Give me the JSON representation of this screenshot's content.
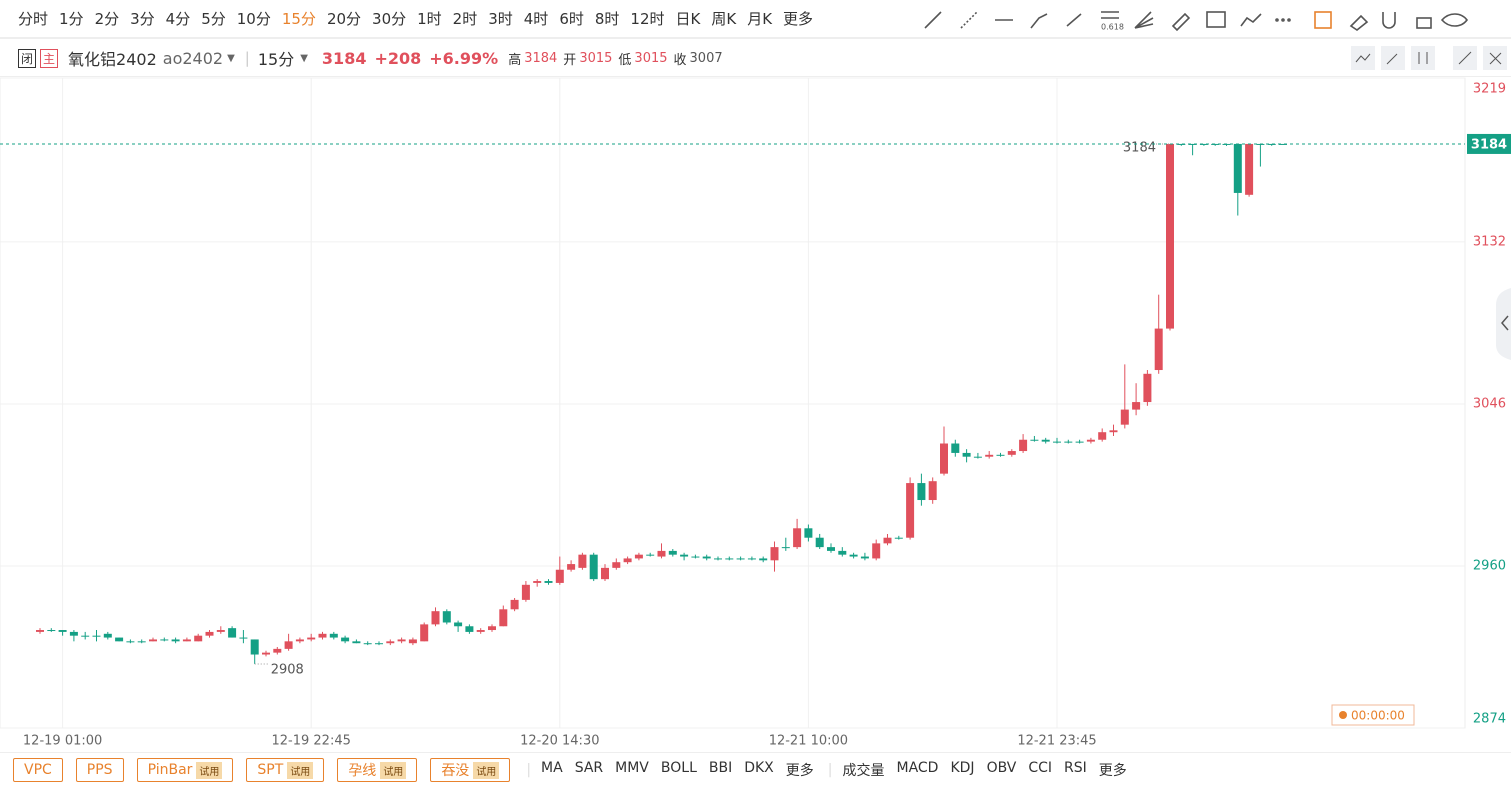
{
  "toolbar": {
    "periods": [
      "分时",
      "1分",
      "2分",
      "3分",
      "4分",
      "5分",
      "10分",
      "15分",
      "20分",
      "30分",
      "1时",
      "2时",
      "3时",
      "4时",
      "6时",
      "8时",
      "12时",
      "日K",
      "周K",
      "月K",
      "更多"
    ],
    "active": "15分",
    "fib_label": "0.618"
  },
  "header": {
    "badge_close": "闭",
    "badge_main": "主",
    "name": "氧化铝2402",
    "code": "ao2402",
    "period": "15分",
    "price": "3184",
    "change": "+208",
    "change_pct": "+6.99%",
    "high_label": "高",
    "high": "3184",
    "open_label": "开",
    "open": "3015",
    "low_label": "低",
    "low": "3015",
    "close_label": "收"
  },
  "chart_data": {
    "type": "candlestick",
    "prev_close": 3007,
    "last": 3184,
    "max_label": 3184,
    "min_label": 2908,
    "countdown": "00:00:00",
    "up_color": "#e0505c",
    "down_color": "#14a085",
    "ylim": [
      2874,
      3219
    ],
    "yticks": [
      2874,
      2960,
      3046,
      3132,
      3219
    ],
    "xticks": [
      {
        "value": 2,
        "label": "12-19 01:00"
      },
      {
        "value": 24,
        "label": "12-19 22:45"
      },
      {
        "value": 46,
        "label": "12-20 14:30"
      },
      {
        "value": 68,
        "label": "12-21 10:00"
      },
      {
        "value": 90,
        "label": "12-21 23:45"
      }
    ],
    "grid": true,
    "ohlc": [
      [
        2925,
        2927,
        2924,
        2926
      ],
      [
        2926,
        2927,
        2925,
        2926
      ],
      [
        2926,
        2926,
        2923,
        2925
      ],
      [
        2925,
        2926,
        2920,
        2923
      ],
      [
        2923,
        2925,
        2921,
        2923
      ],
      [
        2923,
        2926,
        2920,
        2923
      ],
      [
        2924,
        2925,
        2921,
        2922
      ],
      [
        2922,
        2922,
        2920,
        2920
      ],
      [
        2920,
        2921,
        2919,
        2920
      ],
      [
        2920,
        2921,
        2919,
        2920
      ],
      [
        2920,
        2922,
        2920,
        2921
      ],
      [
        2921,
        2922,
        2920,
        2921
      ],
      [
        2921,
        2922,
        2919,
        2920
      ],
      [
        2920,
        2922,
        2920,
        2921
      ],
      [
        2920,
        2924,
        2920,
        2923
      ],
      [
        2923,
        2926,
        2922,
        2925
      ],
      [
        2925,
        2928,
        2924,
        2926
      ],
      [
        2927,
        2928,
        2922,
        2922
      ],
      [
        2922,
        2926,
        2919,
        2922
      ],
      [
        2921,
        2921,
        2908,
        2913
      ],
      [
        2913,
        2915,
        2912,
        2914
      ],
      [
        2914,
        2917,
        2913,
        2916
      ],
      [
        2916,
        2924,
        2915,
        2920
      ],
      [
        2920,
        2922,
        2919,
        2921
      ],
      [
        2921,
        2924,
        2920,
        2922
      ],
      [
        2922,
        2925,
        2921,
        2924
      ],
      [
        2924,
        2925,
        2921,
        2922
      ],
      [
        2922,
        2923,
        2919,
        2920
      ],
      [
        2920,
        2921,
        2919,
        2919
      ],
      [
        2919,
        2920,
        2918,
        2919
      ],
      [
        2919,
        2920,
        2918,
        2919
      ],
      [
        2919,
        2921,
        2918,
        2920
      ],
      [
        2920,
        2922,
        2919,
        2921
      ],
      [
        2919,
        2922,
        2918,
        2921
      ],
      [
        2920,
        2930,
        2920,
        2929
      ],
      [
        2929,
        2938,
        2928,
        2936
      ],
      [
        2936,
        2937,
        2929,
        2930
      ],
      [
        2930,
        2931,
        2925,
        2928
      ],
      [
        2928,
        2929,
        2924,
        2925
      ],
      [
        2925,
        2927,
        2924,
        2926
      ],
      [
        2926,
        2929,
        2925,
        2928
      ],
      [
        2928,
        2939,
        2928,
        2937
      ],
      [
        2937,
        2943,
        2936,
        2942
      ],
      [
        2942,
        2952,
        2941,
        2950
      ],
      [
        2951,
        2953,
        2949,
        2952
      ],
      [
        2952,
        2953,
        2950,
        2951
      ],
      [
        2951,
        2965,
        2950,
        2958
      ],
      [
        2958,
        2963,
        2957,
        2961
      ],
      [
        2959,
        2967,
        2958,
        2966
      ],
      [
        2966,
        2967,
        2952,
        2953
      ],
      [
        2953,
        2961,
        2952,
        2959
      ],
      [
        2959,
        2964,
        2958,
        2962
      ],
      [
        2962,
        2965,
        2961,
        2964
      ],
      [
        2964,
        2967,
        2963,
        2966
      ],
      [
        2966,
        2967,
        2965,
        2966
      ],
      [
        2965,
        2972,
        2964,
        2968
      ],
      [
        2968,
        2969,
        2965,
        2966
      ],
      [
        2966,
        2967,
        2963,
        2965
      ],
      [
        2965,
        2966,
        2964,
        2965
      ],
      [
        2965,
        2966,
        2963,
        2964
      ],
      [
        2964,
        2965,
        2963,
        2964
      ],
      [
        2964,
        2965,
        2963,
        2964
      ],
      [
        2964,
        2965,
        2963,
        2964
      ],
      [
        2964,
        2965,
        2963,
        2964
      ],
      [
        2964,
        2965,
        2962,
        2963
      ],
      [
        2963,
        2973,
        2957,
        2970
      ],
      [
        2970,
        2975,
        2968,
        2970
      ],
      [
        2970,
        2985,
        2969,
        2980
      ],
      [
        2980,
        2982,
        2973,
        2975
      ],
      [
        2975,
        2977,
        2969,
        2970
      ],
      [
        2970,
        2972,
        2967,
        2968
      ],
      [
        2968,
        2970,
        2965,
        2966
      ],
      [
        2966,
        2967,
        2964,
        2965
      ],
      [
        2965,
        2967,
        2963,
        2964
      ],
      [
        2964,
        2974,
        2963,
        2972
      ],
      [
        2972,
        2977,
        2971,
        2975
      ],
      [
        2975,
        2976,
        2974,
        2975
      ],
      [
        2975,
        3007,
        2974,
        3004
      ],
      [
        3004,
        3009,
        2992,
        2995
      ],
      [
        2995,
        3007,
        2993,
        3005
      ],
      [
        3009,
        3034,
        3008,
        3025
      ],
      [
        3025,
        3027,
        3018,
        3020
      ],
      [
        3020,
        3022,
        3015,
        3018
      ],
      [
        3018,
        3020,
        3017,
        3018
      ],
      [
        3018,
        3021,
        3017,
        3019
      ],
      [
        3019,
        3020,
        3018,
        3019
      ],
      [
        3019,
        3022,
        3018,
        3021
      ],
      [
        3021,
        3030,
        3020,
        3027
      ],
      [
        3027,
        3029,
        3026,
        3027
      ],
      [
        3027,
        3028,
        3025,
        3026
      ],
      [
        3026,
        3028,
        3025,
        3026
      ],
      [
        3026,
        3027,
        3025,
        3026
      ],
      [
        3026,
        3027,
        3025,
        3026
      ],
      [
        3026,
        3028,
        3025,
        3027
      ],
      [
        3027,
        3033,
        3026,
        3031
      ],
      [
        3031,
        3035,
        3029,
        3032
      ],
      [
        3035,
        3067,
        3033,
        3043
      ],
      [
        3043,
        3057,
        3040,
        3047
      ],
      [
        3047,
        3064,
        3045,
        3062
      ],
      [
        3064,
        3104,
        3062,
        3086
      ],
      [
        3086,
        3184,
        3085,
        3184
      ],
      [
        3184,
        3184,
        3183,
        3184
      ],
      [
        3184,
        3184,
        3178,
        3184
      ],
      [
        3184,
        3184,
        3183,
        3184
      ],
      [
        3184,
        3184,
        3183,
        3184
      ],
      [
        3184,
        3184,
        3183,
        3184
      ],
      [
        3184,
        3184,
        3146,
        3158
      ],
      [
        3157,
        3184,
        3156,
        3184
      ],
      [
        3184,
        3184,
        3172,
        3184
      ],
      [
        3184,
        3184,
        3183,
        3184
      ],
      [
        3184,
        3184,
        3184,
        3184
      ]
    ]
  },
  "footer": {
    "patterns": [
      {
        "name": "VPC"
      },
      {
        "name": "PPS"
      },
      {
        "name": "PinBar",
        "tag": "试用"
      },
      {
        "name": "SPT",
        "tag": "试用"
      },
      {
        "name": "孕线",
        "tag": "试用"
      },
      {
        "name": "吞没",
        "tag": "试用"
      }
    ],
    "main_indicators": [
      "MA",
      "SAR",
      "MMV",
      "BOLL",
      "BBI",
      "DKX",
      "更多"
    ],
    "sub_indicators": [
      "成交量",
      "MACD",
      "KDJ",
      "OBV",
      "CCI",
      "RSI",
      "更多"
    ]
  }
}
